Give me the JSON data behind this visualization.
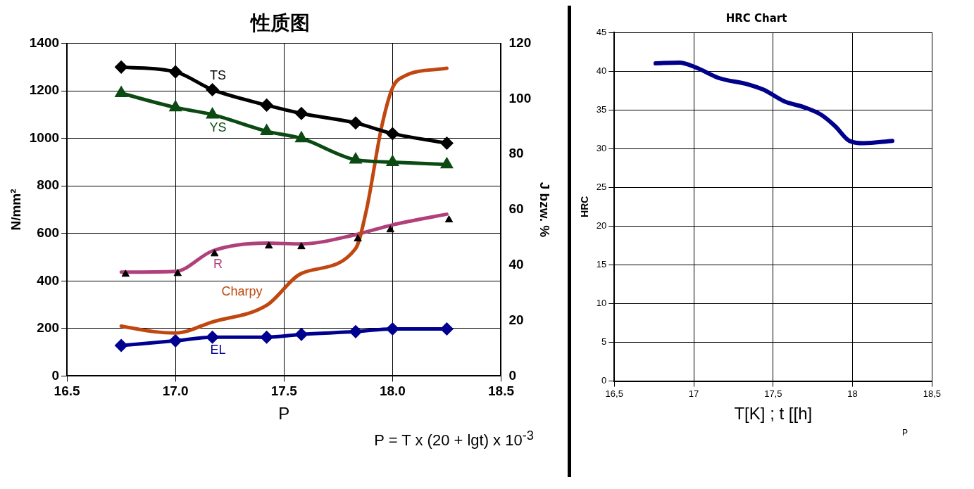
{
  "chart_data": [
    {
      "type": "line",
      "title": "性质图",
      "xlabel": "P",
      "ylabel": "N/mm²",
      "y2label": "J bzw. %",
      "xlim": [
        16.5,
        18.5
      ],
      "xticks": [
        16.5,
        {
          "value": 17,
          "label": "17.0"
        },
        17.5,
        {
          "value": 18,
          "label": "18.0"
        },
        18.5
      ],
      "ylim": [
        0,
        1400
      ],
      "yticks": [
        0,
        200,
        400,
        600,
        800,
        1000,
        1200,
        1400
      ],
      "y2lim": [
        0,
        120
      ],
      "y2ticks": [
        0,
        20,
        40,
        60,
        80,
        100,
        120
      ],
      "grid": true,
      "legend": false,
      "series": [
        {
          "name": "TS",
          "color": "#000000",
          "marker": "diamond",
          "x": [
            16.75,
            17.0,
            17.17,
            17.42,
            17.58,
            17.83,
            18.0,
            18.25
          ],
          "values": [
            1300,
            1280,
            1205,
            1140,
            1105,
            1065,
            1020,
            980
          ]
        },
        {
          "name": "YS",
          "color": "#0b4a12",
          "marker": "triangle",
          "x": [
            16.75,
            17.0,
            17.17,
            17.42,
            17.58,
            17.83,
            18.0,
            18.25
          ],
          "values": [
            1190,
            1130,
            1100,
            1030,
            1000,
            910,
            900,
            890
          ]
        },
        {
          "name": "Charpy",
          "color": "#c04810",
          "marker": "none",
          "axis": "y2",
          "x": [
            16.75,
            16.9,
            17.0,
            17.17,
            17.42,
            17.58,
            17.83,
            17.88,
            17.95,
            18.0,
            18.05,
            18.25
          ],
          "values": [
            18,
            16,
            15.5,
            19.5,
            25.5,
            37,
            46,
            60,
            90,
            104,
            108,
            111
          ]
        },
        {
          "name": "R",
          "color": "#b0407a",
          "marker": "none",
          "x": [
            16.75,
            17.0,
            17.17,
            17.42,
            17.58,
            17.83,
            18.0,
            18.25
          ],
          "values": [
            437,
            440,
            526,
            559,
            556,
            595,
            636,
            681
          ]
        },
        {
          "type": "scatter",
          "color": "#000000",
          "marker": "triangle",
          "x": [
            16.77,
            17.01,
            17.18,
            17.43,
            17.58,
            17.84,
            17.99,
            18.26
          ],
          "values": [
            428,
            431,
            514,
            547,
            544,
            577,
            615,
            657
          ]
        },
        {
          "name": "EL",
          "color": "#000090",
          "marker": "diamond",
          "axis": "y2",
          "x": [
            16.75,
            17.0,
            17.17,
            17.42,
            17.58,
            17.83,
            18.0,
            18.25
          ],
          "values": [
            11,
            12.7,
            14,
            14,
            15,
            16,
            17,
            17
          ]
        }
      ],
      "annotations": [
        "P = T x (20 + lgt) x 10$^{-3}$"
      ]
    },
    {
      "type": "line",
      "title": "HRC Chart",
      "xlabel": "T[K] ; t [[h]",
      "ylabel": "HRC",
      "xlim": [
        16.5,
        18.5
      ],
      "xticks": [
        {
          "value": 16.5,
          "label": "16,5"
        },
        17,
        {
          "value": 17.5,
          "label": "17,5"
        },
        18,
        {
          "value": 18.5,
          "label": "18,5"
        }
      ],
      "ylim": [
        0,
        45
      ],
      "yticks": [
        0,
        5,
        10,
        15,
        20,
        25,
        30,
        35,
        40,
        45
      ],
      "grid": true,
      "legend": false,
      "series": [
        {
          "color": "#00008b",
          "marker": "none",
          "x": [
            16.76,
            16.91,
            17.01,
            17.16,
            17.34,
            17.44,
            17.57,
            17.7,
            17.8,
            17.89,
            17.98,
            18.07,
            18.25
          ],
          "values": [
            41,
            41.1,
            40.5,
            39.1,
            38.3,
            37.6,
            36.1,
            35.3,
            34.4,
            32.9,
            31,
            30.7,
            31
          ]
        }
      ],
      "annotations": [
        "P"
      ]
    }
  ]
}
